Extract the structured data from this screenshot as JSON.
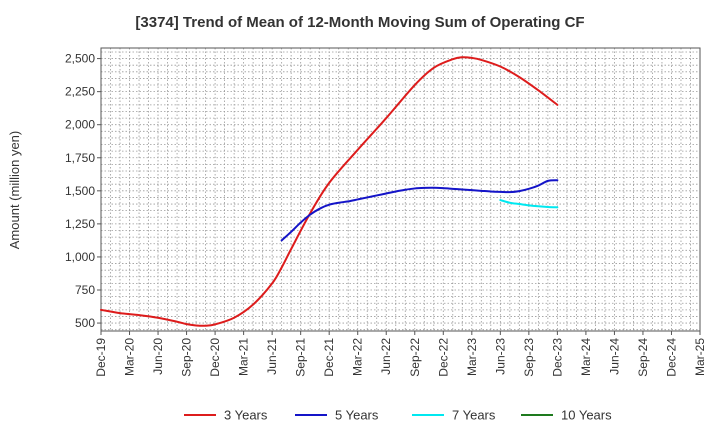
{
  "chart_data": {
    "type": "line",
    "title": "[3374]  Trend of Mean of 12-Month Moving Sum of Operating CF",
    "xlabel": "",
    "ylabel": "Amount (million yen)",
    "ylim": [
      440,
      2580
    ],
    "yticks": [
      500,
      750,
      1000,
      1250,
      1500,
      1750,
      2000,
      2250,
      2500
    ],
    "ytick_labels": [
      "500",
      "750",
      "1,000",
      "1,250",
      "1,500",
      "1,750",
      "2,000",
      "2,250",
      "2,500"
    ],
    "x_index_range": [
      0,
      63
    ],
    "xticks": [
      0,
      3,
      6,
      9,
      12,
      15,
      18,
      21,
      24,
      27,
      30,
      33,
      36,
      39,
      42,
      45,
      48,
      51,
      54,
      57,
      60,
      63
    ],
    "xtick_labels": [
      "Dec-19",
      "Mar-20",
      "Jun-20",
      "Sep-20",
      "Dec-20",
      "Mar-21",
      "Jun-21",
      "Sep-21",
      "Dec-21",
      "Mar-22",
      "Jun-22",
      "Sep-22",
      "Dec-22",
      "Mar-23",
      "Jun-23",
      "Sep-23",
      "Dec-23",
      "Mar-24",
      "Jun-24",
      "Sep-24",
      "Dec-24",
      "Mar-25"
    ],
    "grid": true,
    "legend_position": "bottom",
    "series": [
      {
        "name": "3 Years",
        "color": "#dd1c1c",
        "x": [
          0,
          2,
          4,
          6,
          8,
          9,
          10,
          11,
          12,
          14,
          16,
          18,
          19,
          20,
          22,
          24,
          27,
          30,
          33,
          35,
          37,
          38,
          39,
          40,
          42,
          44,
          46,
          48
        ],
        "y": [
          600,
          575,
          560,
          540,
          510,
          492,
          482,
          480,
          490,
          540,
          640,
          800,
          920,
          1060,
          1330,
          1560,
          1810,
          2050,
          2300,
          2430,
          2495,
          2510,
          2505,
          2490,
          2440,
          2360,
          2260,
          2150
        ]
      },
      {
        "name": "5 Years",
        "color": "#1414c8",
        "x": [
          19,
          20,
          21,
          22,
          23,
          24,
          25,
          26,
          27,
          28,
          29,
          30,
          31,
          32,
          33,
          34,
          35,
          36,
          37,
          38,
          39,
          40,
          41,
          42,
          43,
          44,
          45,
          46,
          47,
          48
        ],
        "y": [
          1125,
          1190,
          1260,
          1320,
          1365,
          1395,
          1410,
          1420,
          1435,
          1450,
          1465,
          1480,
          1495,
          1508,
          1518,
          1522,
          1523,
          1520,
          1515,
          1510,
          1505,
          1500,
          1495,
          1492,
          1490,
          1498,
          1515,
          1540,
          1575,
          1580
        ]
      },
      {
        "name": "7 Years",
        "color": "#00e8f0",
        "x": [
          42,
          43,
          44,
          45,
          46,
          47,
          48
        ],
        "y": [
          1430,
          1410,
          1400,
          1390,
          1383,
          1378,
          1375
        ]
      },
      {
        "name": "10 Years",
        "color": "#1e7a1e",
        "x": [],
        "y": []
      }
    ]
  }
}
